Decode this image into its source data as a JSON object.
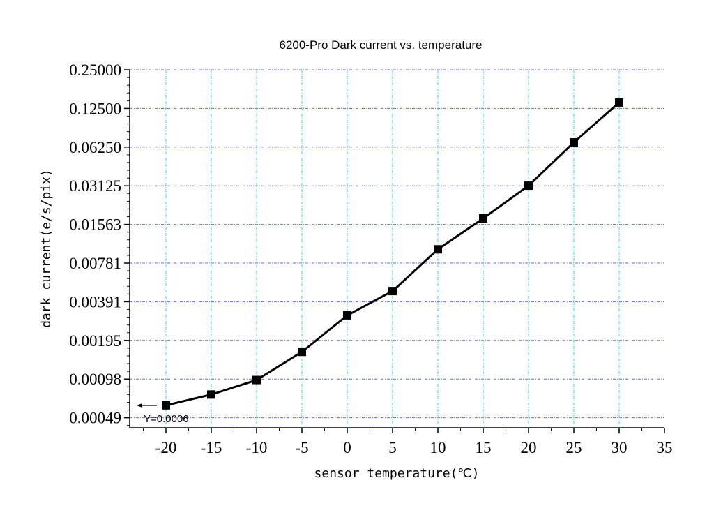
{
  "chart_data": {
    "type": "line",
    "title": "6200-Pro Dark current vs. temperature",
    "xlabel": "sensor temperature(℃)",
    "ylabel": "dark current(e/s/pix)",
    "x": [
      -20,
      -15,
      -10,
      -5,
      0,
      5,
      10,
      15,
      20,
      25,
      30
    ],
    "series": [
      {
        "values": [
          0.00061,
          0.00074,
          0.00096,
          0.00159,
          0.00306,
          0.00473,
          0.01,
          0.0174,
          0.0313,
          0.068,
          0.139
        ],
        "color": "#000000",
        "marker": "square"
      }
    ],
    "xlim": [
      -24,
      35
    ],
    "ylim": [
      0.00038,
      0.25
    ],
    "yscale": "log2",
    "xticks": [
      "-20",
      "-15",
      "-10",
      "-5",
      "0",
      "5",
      "10",
      "15",
      "20",
      "25",
      "30",
      "35"
    ],
    "yticks": [
      "0.25000",
      "0.12500",
      "0.06250",
      "0.03125",
      "0.01563",
      "0.00781",
      "0.00391",
      "0.00195",
      "0.00098",
      "0.00049"
    ],
    "ytick_values": [
      0.25,
      0.125,
      0.0625,
      0.03125,
      0.015625,
      0.0078125,
      0.00390625,
      0.001953125,
      0.0009765625,
      0.00048828125
    ],
    "grid": true,
    "grid_colors": {
      "horizontal": "#6666ee",
      "vertical": "#33dddd"
    },
    "annotation": {
      "text": "Y=0.0006",
      "arrow": "left"
    }
  }
}
